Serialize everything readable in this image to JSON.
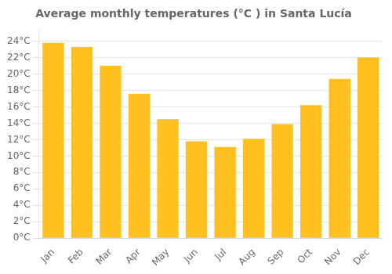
{
  "chart_data": {
    "type": "bar",
    "title": "Average monthly temperatures (°C ) in Santa Lucía",
    "categories": [
      "Jan",
      "Feb",
      "Mar",
      "Apr",
      "May",
      "Jun",
      "Jul",
      "Aug",
      "Sep",
      "Oct",
      "Nov",
      "Dec"
    ],
    "values": [
      23.8,
      23.3,
      21.0,
      17.6,
      14.5,
      11.8,
      11.1,
      12.1,
      13.9,
      16.2,
      19.4,
      22.0
    ],
    "color": "#FFC020",
    "ylim": [
      0,
      25.5
    ],
    "yticks": [
      {
        "value": 0,
        "label": "0°C"
      },
      {
        "value": 2,
        "label": "2°C"
      },
      {
        "value": 4,
        "label": "4°C"
      },
      {
        "value": 6,
        "label": "6°C"
      },
      {
        "value": 8,
        "label": "8°C"
      },
      {
        "value": 10,
        "label": "10°C"
      },
      {
        "value": 12,
        "label": "12°C"
      },
      {
        "value": 14,
        "label": "14°C"
      },
      {
        "value": 16,
        "label": "16°C"
      },
      {
        "value": 18,
        "label": "18°C"
      },
      {
        "value": 20,
        "label": "20°C"
      },
      {
        "value": 22,
        "label": "22°C"
      },
      {
        "value": 24,
        "label": "24°C"
      }
    ],
    "grid": true
  }
}
